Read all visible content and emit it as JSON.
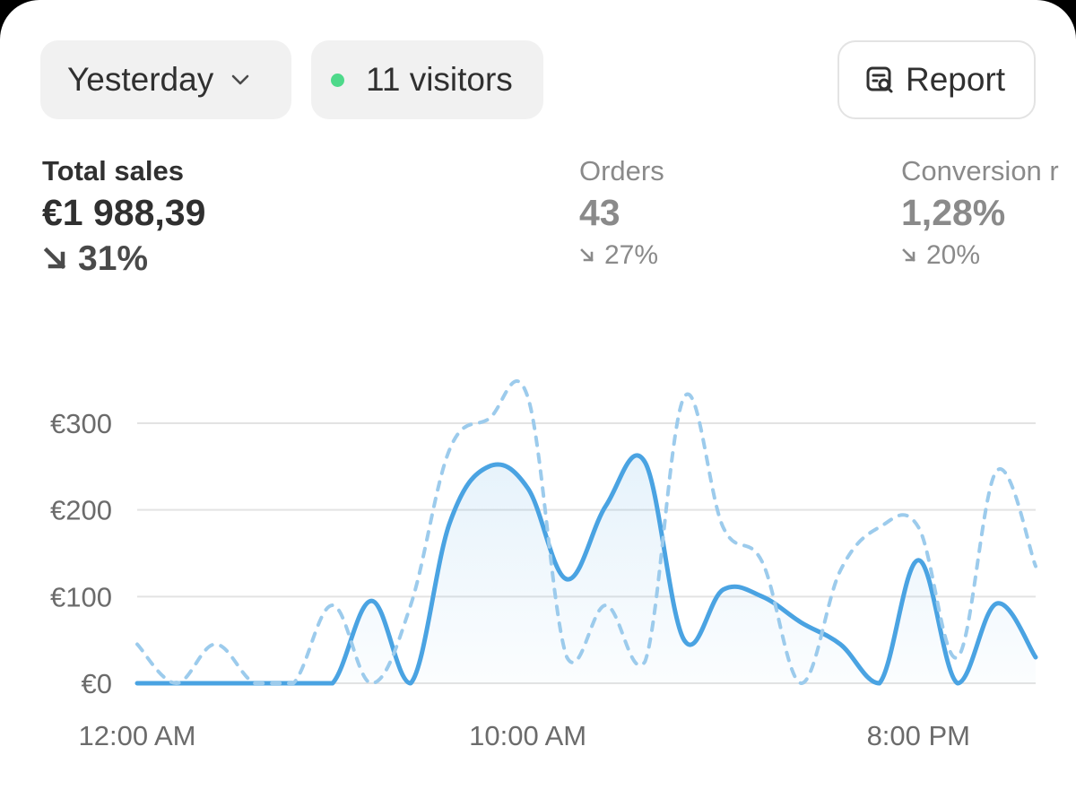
{
  "toolbar": {
    "date_range": "Yesterday",
    "visitors": "11 visitors",
    "live_dot_color": "#4ed98a",
    "report_label": "Report"
  },
  "metrics": [
    {
      "label": "Total sales",
      "value": "€1 988,39",
      "delta": "31%",
      "trend": "down"
    },
    {
      "label": "Orders",
      "value": "43",
      "delta": "27%",
      "trend": "down"
    },
    {
      "label": "Conversion r",
      "value": "1,28%",
      "delta": "20%",
      "trend": "down"
    }
  ],
  "chart_data": {
    "type": "line",
    "title": "",
    "xlabel": "",
    "ylabel": "",
    "ylim": [
      0,
      300
    ],
    "y_ticks": [
      "€0",
      "€100",
      "€200",
      "€300"
    ],
    "x_tick_labels": [
      "12:00 AM",
      "10:00 AM",
      "8:00 PM"
    ],
    "x_tick_hours": [
      0,
      10,
      20
    ],
    "x_range": [
      0,
      23
    ],
    "grid": true,
    "colors": {
      "current": "#4aa3e2",
      "previous": "#9ccbec",
      "grid": "#e3e3e3"
    },
    "series": [
      {
        "style": "solid",
        "x": [
          0,
          1,
          2,
          3,
          4,
          5,
          6,
          7,
          8,
          9,
          10,
          11,
          12,
          13,
          14,
          15,
          16,
          17,
          18,
          19,
          20,
          21,
          22,
          23
        ],
        "values": [
          0,
          0,
          0,
          0,
          0,
          0,
          95,
          0,
          185,
          250,
          225,
          120,
          205,
          255,
          50,
          108,
          100,
          70,
          45,
          0,
          142,
          0,
          92,
          30
        ]
      },
      {
        "style": "dashed",
        "x": [
          0,
          1,
          2,
          3,
          4,
          5,
          6,
          7,
          8,
          9,
          10,
          11,
          12,
          13,
          14,
          15,
          16,
          17,
          18,
          19,
          20,
          21,
          22,
          23
        ],
        "values": [
          45,
          0,
          45,
          0,
          0,
          90,
          0,
          90,
          270,
          305,
          330,
          30,
          90,
          25,
          330,
          180,
          140,
          0,
          130,
          180,
          180,
          30,
          245,
          135
        ]
      }
    ]
  }
}
